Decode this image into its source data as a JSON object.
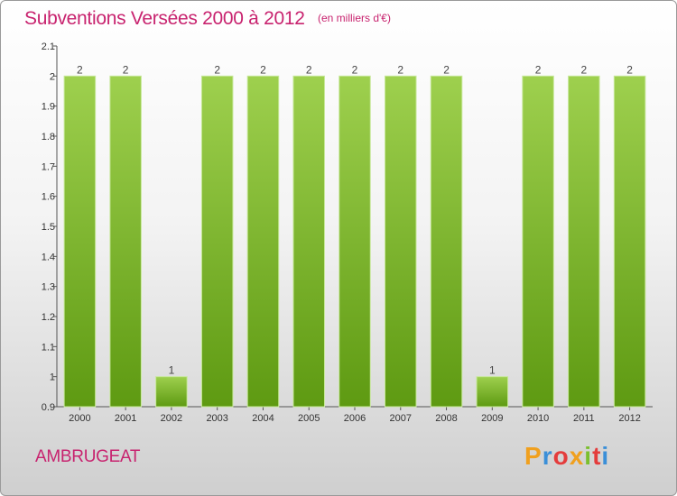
{
  "header": {
    "title": "Subventions Versées 2000 à 2012",
    "unit": "(en milliers d'€)"
  },
  "footer": {
    "commune": "AMBRUGEAT",
    "logo": "Proxiti",
    "logo_colors": [
      "#f0a01e",
      "#3b8fd8",
      "#e43c3c",
      "#f0a01e",
      "#7bbf2e",
      "#e43c3c",
      "#3b8fd8"
    ]
  },
  "chart_data": {
    "type": "bar",
    "categories": [
      "2000",
      "2001",
      "2002",
      "2003",
      "2004",
      "2005",
      "2006",
      "2007",
      "2008",
      "2009",
      "2010",
      "2011",
      "2012"
    ],
    "values": [
      2,
      2,
      1,
      2,
      2,
      2,
      2,
      2,
      2,
      1,
      2,
      2,
      2
    ],
    "data_labels": [
      "2",
      "2",
      "1",
      "2",
      "2",
      "2",
      "2",
      "2",
      "2",
      "1",
      "2",
      "2",
      "2"
    ],
    "title": "Subventions Versées 2000 à 2012",
    "xlabel": "",
    "ylabel": "",
    "ylim": [
      0.9,
      2.1
    ],
    "yticks": [
      0.9,
      1,
      1.1,
      1.2,
      1.3,
      1.4,
      1.5,
      1.6,
      1.7,
      1.8,
      1.9,
      2,
      2.1
    ],
    "ytick_labels": [
      "0.9",
      "1",
      "1.1",
      "1.2",
      "1.3",
      "1.4",
      "1.5",
      "1.6",
      "1.7",
      "1.8",
      "1.9",
      "2",
      "2.1"
    ],
    "grid": false,
    "bar_color_top": "#9ed04e",
    "bar_color_bottom": "#5e9a12"
  }
}
